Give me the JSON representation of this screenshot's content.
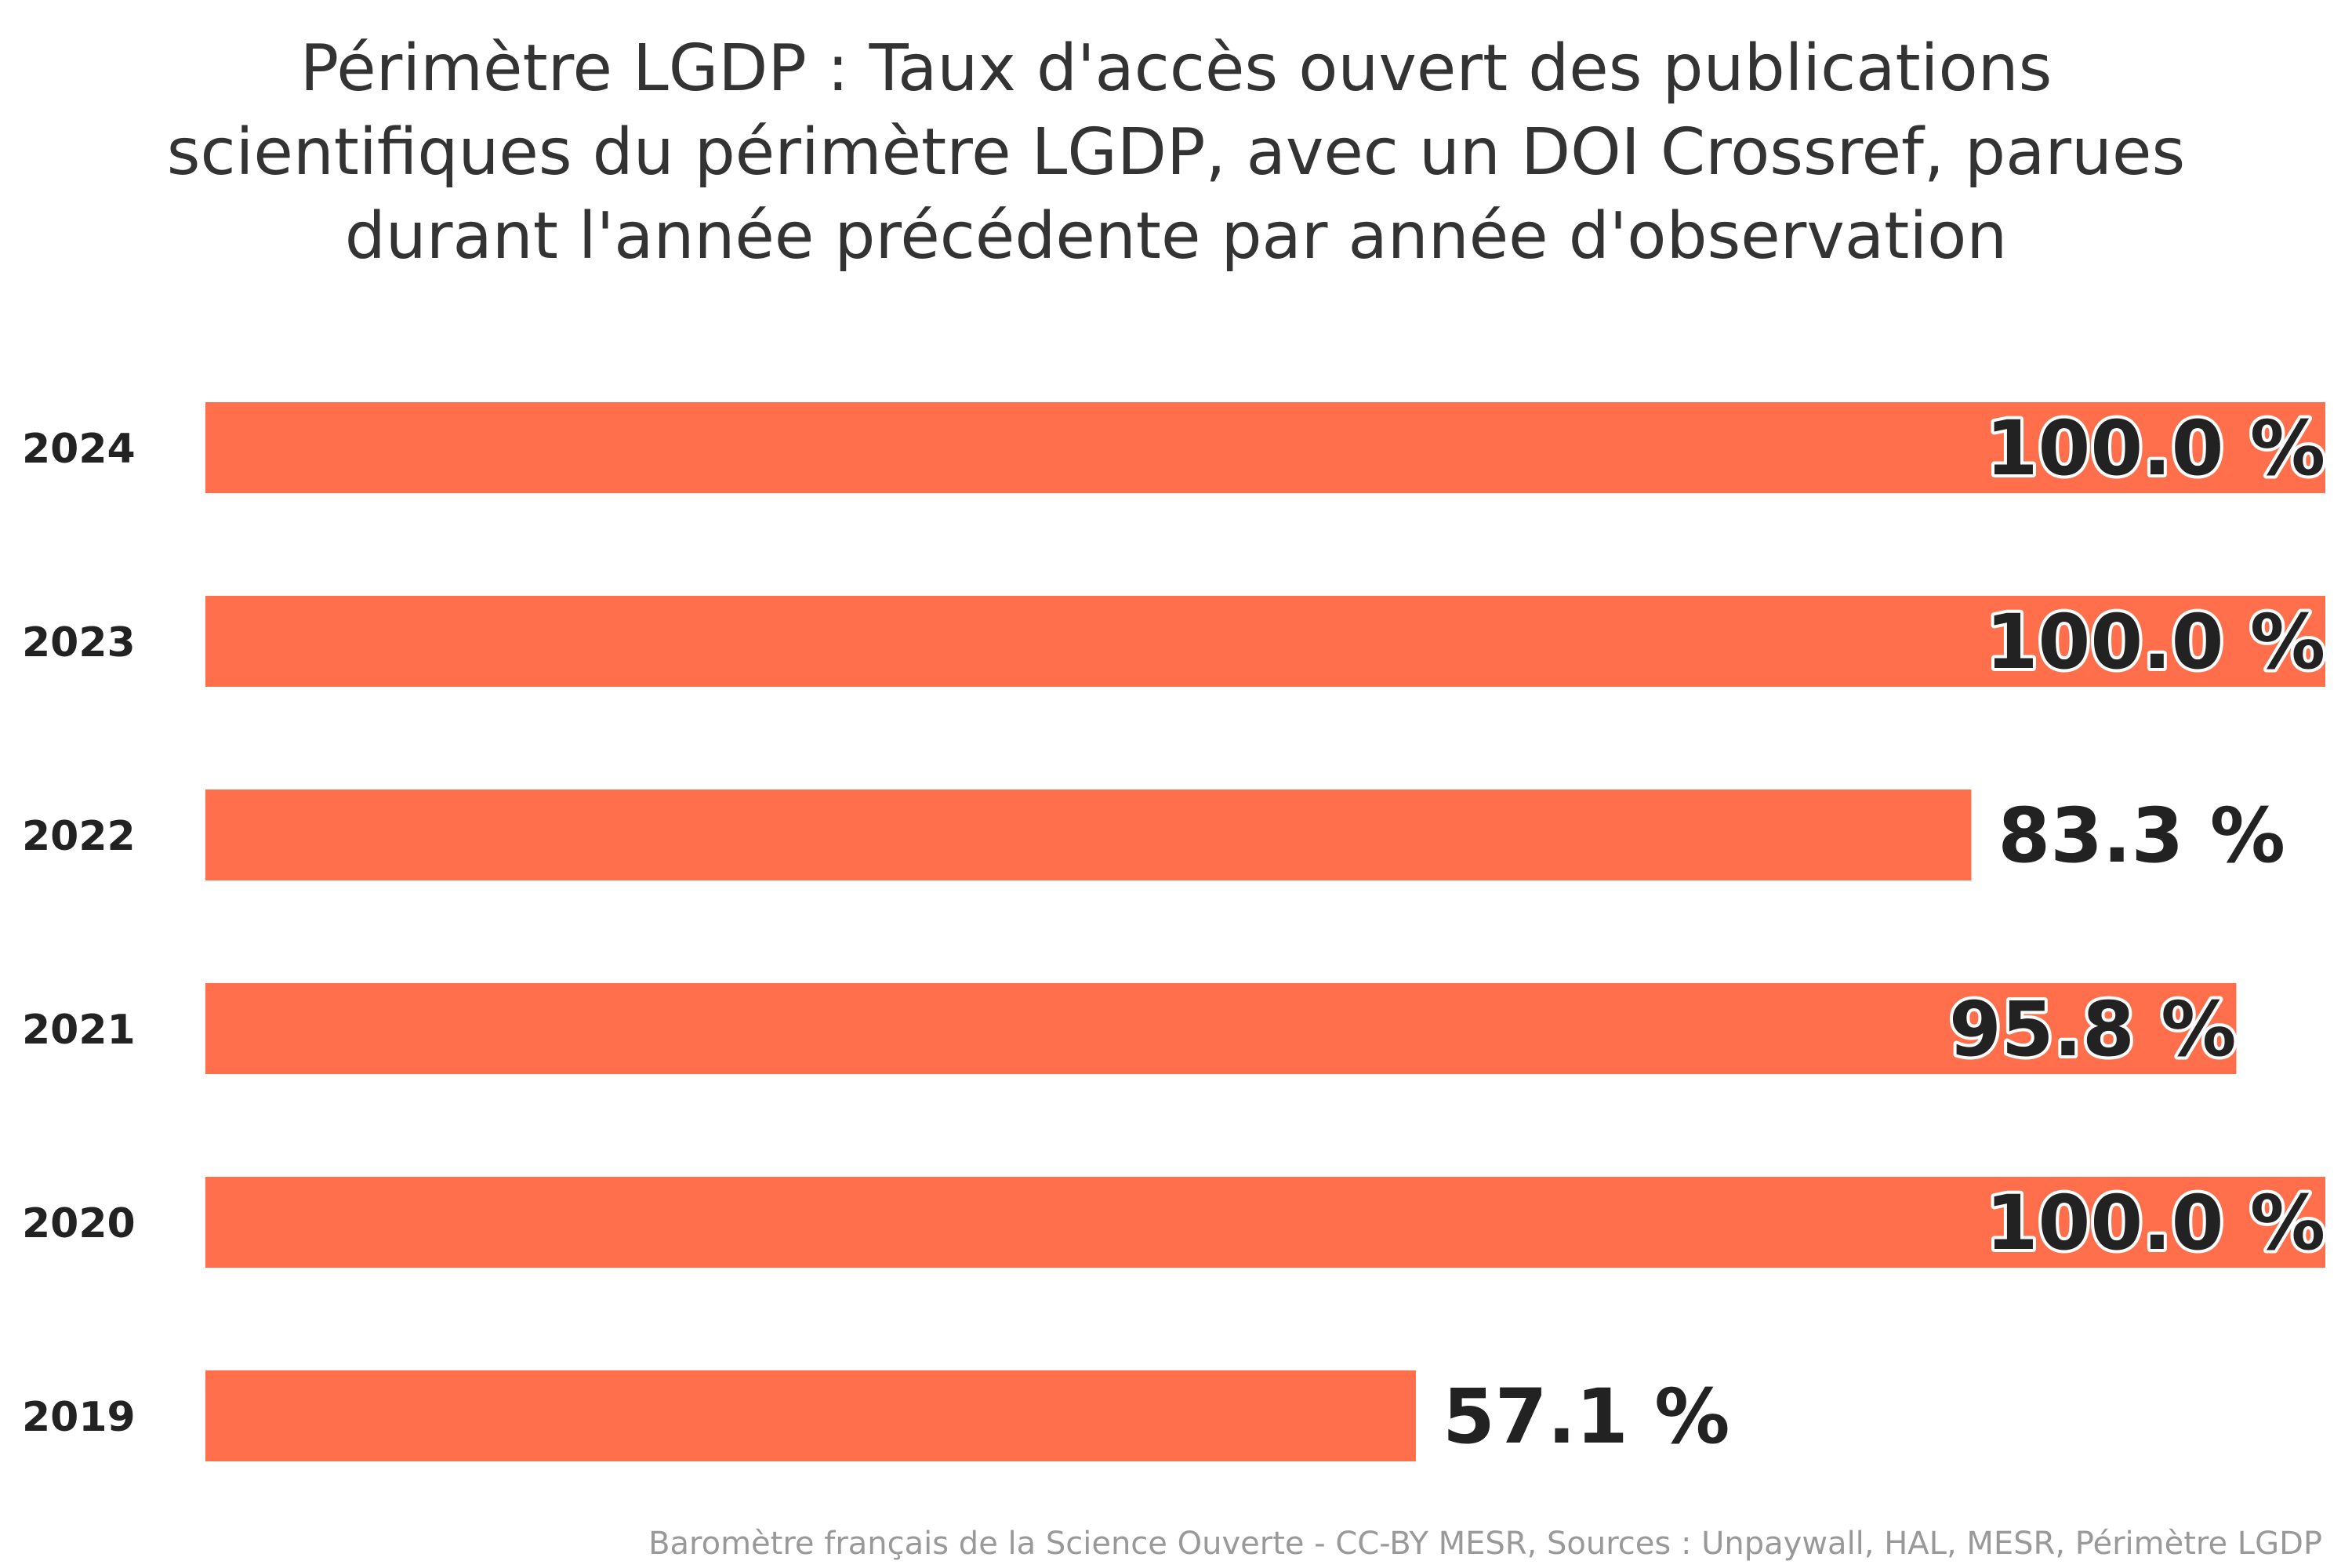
{
  "chart_data": {
    "type": "bar",
    "orientation": "horizontal",
    "title_lines": [
      "Périmètre LGDP : Taux d'accès ouvert des publications",
      "scientifiques du périmètre LGDP, avec un DOI Crossref, parues",
      "durant l'année précédente par année d'observation"
    ],
    "categories": [
      "2024",
      "2023",
      "2022",
      "2021",
      "2020",
      "2019"
    ],
    "values": [
      100.0,
      100.0,
      83.3,
      95.8,
      100.0,
      57.1
    ],
    "data_labels": [
      "100.0 %",
      "100.0 %",
      "83.3 %",
      "95.8 %",
      "100.0 %",
      "57.1 %"
    ],
    "xlim": [
      0,
      100
    ],
    "grid": false,
    "legend": "none",
    "bar_color": "#ff6f4c",
    "credits": "Baromètre français de la Science Ouverte - CC-BY MESR, Sources : Unpaywall, HAL, MESR, Périmètre LGDP"
  }
}
